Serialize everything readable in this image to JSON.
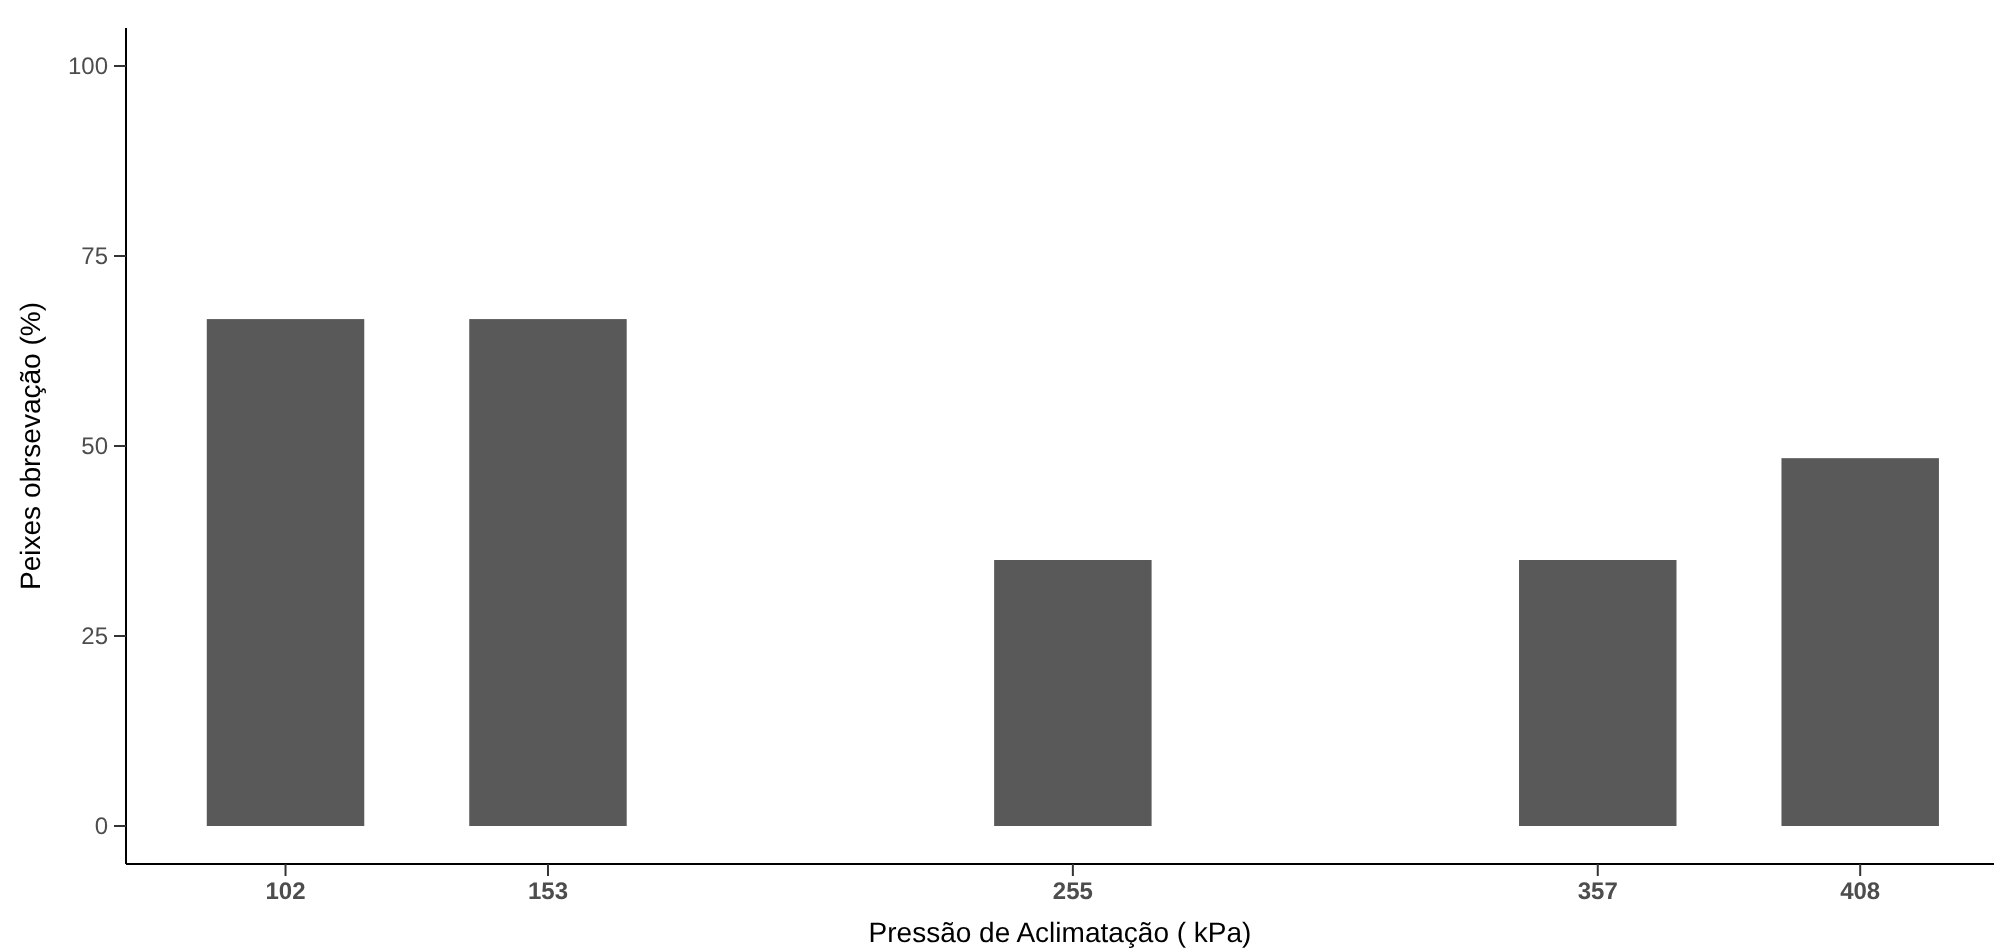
{
  "chart_data": {
    "type": "bar",
    "xlabel": "Pressão de Aclimatação ( kPa)",
    "ylabel": "Peixes obrsevação (%)",
    "x": [
      102,
      153,
      255,
      357,
      408
    ],
    "values": [
      66.7,
      66.7,
      35,
      35,
      48.4
    ],
    "color": "#595959",
    "xlim": [
      71,
      434
    ],
    "xticks": [
      102,
      153,
      255,
      357,
      408
    ],
    "ylim": [
      -5,
      105
    ],
    "yticks": [
      0,
      25,
      50,
      75,
      100
    ],
    "grid": false
  }
}
